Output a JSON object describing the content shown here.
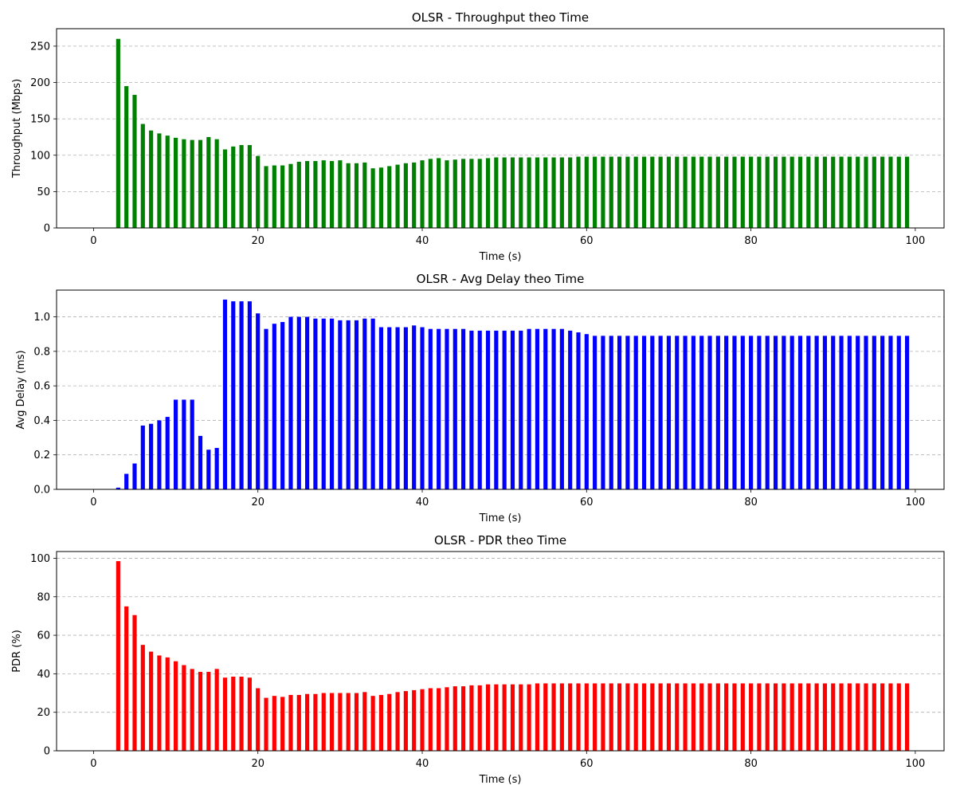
{
  "figure": {
    "chart_data": [
      {
        "type": "bar",
        "title": "OLSR - Throughput theo Time",
        "xlabel": "Time (s)",
        "ylabel": "Throughput (Mbps)",
        "xlim": [
          -4.5,
          103.5
        ],
        "ylim": [
          0,
          274
        ],
        "xticks": [
          0,
          20,
          40,
          60,
          80,
          100
        ],
        "yticks": [
          0,
          50,
          100,
          150,
          200,
          250
        ],
        "grid": "y-dashed",
        "color": "#008000",
        "x": [
          3,
          4,
          5,
          6,
          7,
          8,
          9,
          10,
          11,
          12,
          13,
          14,
          15,
          16,
          17,
          18,
          19,
          20,
          21,
          22,
          23,
          24,
          25,
          26,
          27,
          28,
          29,
          30,
          31,
          32,
          33,
          34,
          35,
          36,
          37,
          38,
          39,
          40,
          41,
          42,
          43,
          44,
          45,
          46,
          47,
          48,
          49,
          50,
          51,
          52,
          53,
          54,
          55,
          56,
          57,
          58,
          59,
          60,
          61,
          62,
          63,
          64,
          65,
          66,
          67,
          68,
          69,
          70,
          71,
          72,
          73,
          74,
          75,
          76,
          77,
          78,
          79,
          80,
          81,
          82,
          83,
          84,
          85,
          86,
          87,
          88,
          89,
          90,
          91,
          92,
          93,
          94,
          95,
          96,
          97,
          98,
          99
        ],
        "values": [
          260,
          195,
          183,
          143,
          134,
          130,
          127,
          124,
          122,
          121,
          121,
          125,
          122,
          108,
          112,
          114,
          114,
          99,
          85,
          86,
          86,
          88,
          91,
          92,
          92,
          93,
          92,
          93,
          89,
          89,
          90,
          82,
          83,
          85,
          87,
          89,
          90,
          93,
          95,
          96,
          93,
          94,
          95,
          95,
          95,
          96,
          97,
          97,
          97,
          97,
          97,
          97,
          97,
          97,
          97,
          97,
          98,
          98,
          98,
          98,
          98,
          98,
          98,
          98,
          98,
          98,
          98,
          98,
          98,
          98,
          98,
          98,
          98,
          98,
          98,
          98,
          98,
          98,
          98,
          98,
          98,
          98,
          98,
          98,
          98,
          98,
          98,
          98,
          98,
          98,
          98,
          98,
          98,
          98,
          98,
          98,
          98
        ]
      },
      {
        "type": "bar",
        "title": "OLSR - Avg Delay theo Time",
        "xlabel": "Time (s)",
        "ylabel": "Avg Delay (ms)",
        "xlim": [
          -4.5,
          103.5
        ],
        "ylim": [
          0,
          1.155
        ],
        "xticks": [
          0,
          20,
          40,
          60,
          80,
          100
        ],
        "yticks": [
          "0.0",
          "0.2",
          "0.4",
          "0.6",
          "0.8",
          "1.0"
        ],
        "grid": "y-dashed",
        "color": "#0000ff",
        "x": [
          3,
          4,
          5,
          6,
          7,
          8,
          9,
          10,
          11,
          12,
          13,
          14,
          15,
          16,
          17,
          18,
          19,
          20,
          21,
          22,
          23,
          24,
          25,
          26,
          27,
          28,
          29,
          30,
          31,
          32,
          33,
          34,
          35,
          36,
          37,
          38,
          39,
          40,
          41,
          42,
          43,
          44,
          45,
          46,
          47,
          48,
          49,
          50,
          51,
          52,
          53,
          54,
          55,
          56,
          57,
          58,
          59,
          60,
          61,
          62,
          63,
          64,
          65,
          66,
          67,
          68,
          69,
          70,
          71,
          72,
          73,
          74,
          75,
          76,
          77,
          78,
          79,
          80,
          81,
          82,
          83,
          84,
          85,
          86,
          87,
          88,
          89,
          90,
          91,
          92,
          93,
          94,
          95,
          96,
          97,
          98,
          99
        ],
        "values": [
          0.01,
          0.09,
          0.15,
          0.37,
          0.38,
          0.4,
          0.42,
          0.52,
          0.52,
          0.52,
          0.31,
          0.23,
          0.24,
          1.1,
          1.09,
          1.09,
          1.09,
          1.02,
          0.93,
          0.96,
          0.97,
          1.0,
          1.0,
          1.0,
          0.99,
          0.99,
          0.99,
          0.98,
          0.98,
          0.98,
          0.99,
          0.99,
          0.94,
          0.94,
          0.94,
          0.94,
          0.95,
          0.94,
          0.93,
          0.93,
          0.93,
          0.93,
          0.93,
          0.92,
          0.92,
          0.92,
          0.92,
          0.92,
          0.92,
          0.92,
          0.93,
          0.93,
          0.93,
          0.93,
          0.93,
          0.92,
          0.91,
          0.9,
          0.89,
          0.89,
          0.89,
          0.89,
          0.89,
          0.89,
          0.89,
          0.89,
          0.89,
          0.89,
          0.89,
          0.89,
          0.89,
          0.89,
          0.89,
          0.89,
          0.89,
          0.89,
          0.89,
          0.89,
          0.89,
          0.89,
          0.89,
          0.89,
          0.89,
          0.89,
          0.89,
          0.89,
          0.89,
          0.89,
          0.89,
          0.89,
          0.89,
          0.89,
          0.89,
          0.89,
          0.89,
          0.89,
          0.89
        ]
      },
      {
        "type": "bar",
        "title": "OLSR - PDR theo Time",
        "xlabel": "Time (s)",
        "ylabel": "PDR (%)",
        "xlim": [
          -4.5,
          103.5
        ],
        "ylim": [
          0,
          103.5
        ],
        "xticks": [
          0,
          20,
          40,
          60,
          80,
          100
        ],
        "yticks": [
          0,
          20,
          40,
          60,
          80,
          100
        ],
        "grid": "y-dashed",
        "color": "#ff0000",
        "x": [
          3,
          4,
          5,
          6,
          7,
          8,
          9,
          10,
          11,
          12,
          13,
          14,
          15,
          16,
          17,
          18,
          19,
          20,
          21,
          22,
          23,
          24,
          25,
          26,
          27,
          28,
          29,
          30,
          31,
          32,
          33,
          34,
          35,
          36,
          37,
          38,
          39,
          40,
          41,
          42,
          43,
          44,
          45,
          46,
          47,
          48,
          49,
          50,
          51,
          52,
          53,
          54,
          55,
          56,
          57,
          58,
          59,
          60,
          61,
          62,
          63,
          64,
          65,
          66,
          67,
          68,
          69,
          70,
          71,
          72,
          73,
          74,
          75,
          76,
          77,
          78,
          79,
          80,
          81,
          82,
          83,
          84,
          85,
          86,
          87,
          88,
          89,
          90,
          91,
          92,
          93,
          94,
          95,
          96,
          97,
          98,
          99
        ],
        "values": [
          98.5,
          75,
          70.5,
          55,
          51.5,
          49.5,
          48.5,
          46.5,
          44.5,
          42.5,
          41,
          41,
          42.5,
          38,
          38.5,
          38.5,
          38,
          32.5,
          27.5,
          28.5,
          28,
          29,
          29,
          29.5,
          29.5,
          30,
          30,
          30,
          30,
          30,
          30.5,
          28.5,
          29,
          29.5,
          30.5,
          31,
          31.5,
          32,
          32.5,
          32.5,
          33,
          33.5,
          33.5,
          34,
          34,
          34.5,
          34.5,
          34.5,
          34.5,
          34.5,
          34.5,
          35,
          35,
          35,
          35,
          35,
          35,
          35,
          35,
          35,
          35,
          35,
          35,
          35,
          35,
          35,
          35,
          35,
          35,
          35,
          35,
          35,
          35,
          35,
          35,
          35,
          35,
          35,
          35,
          35,
          35,
          35,
          35,
          35,
          35,
          35,
          35,
          35,
          35,
          35,
          35,
          35,
          35,
          35,
          35,
          35,
          35
        ]
      }
    ]
  }
}
